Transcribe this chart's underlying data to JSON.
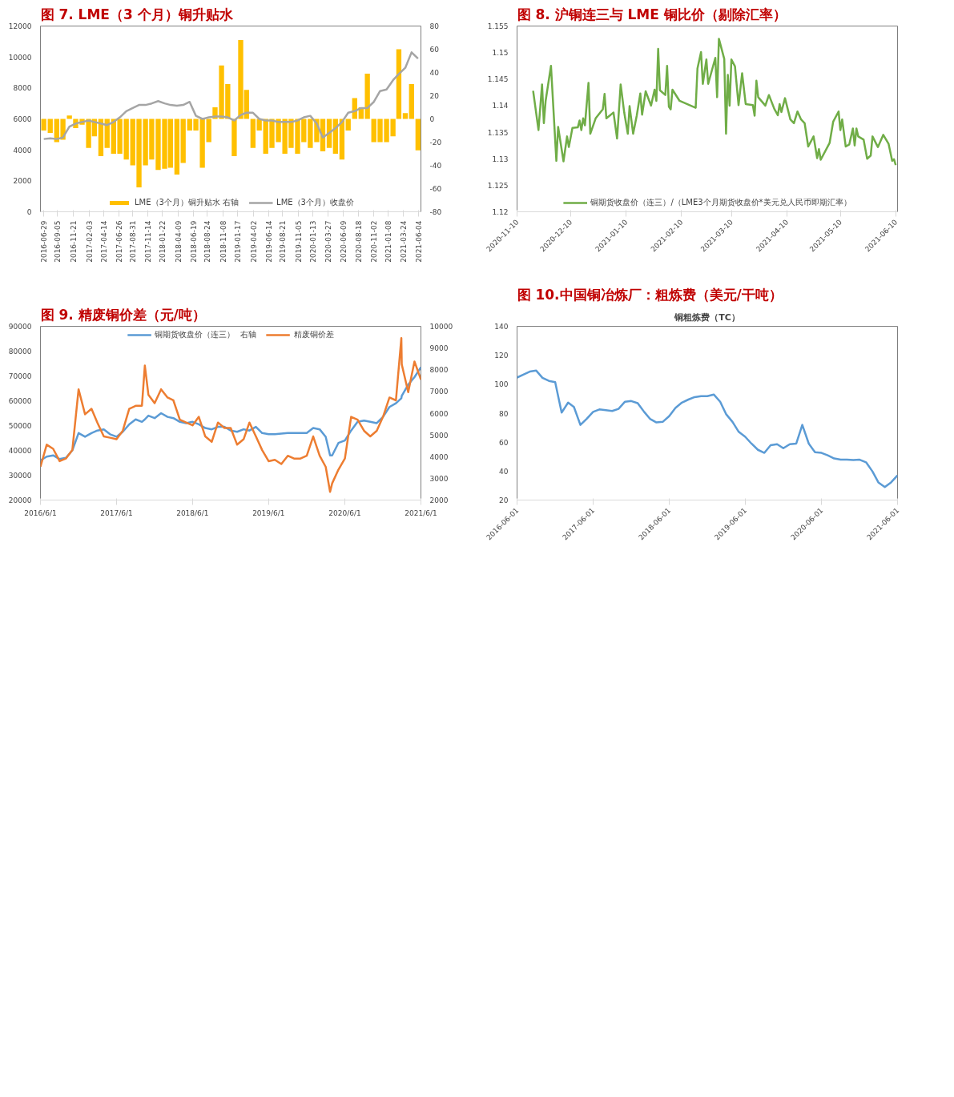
{
  "chart_data": [
    {
      "type": "bar",
      "title": "图 7.  LME（3 个月）铜升贴水",
      "legend": "bottom",
      "grid": false,
      "x": [
        "2016-07-01",
        "2016-08-01",
        "2016-09-01",
        "2016-10-01",
        "2016-11-01",
        "2016-12-01",
        "2017-01-01",
        "2017-02-01",
        "2017-03-01",
        "2017-04-01",
        "2017-05-01",
        "2017-06-01",
        "2017-07-01",
        "2017-08-01",
        "2017-09-01",
        "2017-10-01",
        "2017-11-01",
        "2017-12-01",
        "2018-01-01",
        "2018-02-01",
        "2018-03-01",
        "2018-04-01",
        "2018-05-01",
        "2018-06-01",
        "2018-07-01",
        "2018-08-01",
        "2018-09-01",
        "2018-10-01",
        "2018-11-01",
        "2018-12-01",
        "2019-01-01",
        "2019-02-01",
        "2019-03-01",
        "2019-04-01",
        "2019-05-01",
        "2019-06-01",
        "2019-07-01",
        "2019-08-01",
        "2019-09-01",
        "2019-10-01",
        "2019-11-01",
        "2019-12-01",
        "2020-01-01",
        "2020-02-01",
        "2020-03-01",
        "2020-04-01",
        "2020-05-01",
        "2020-06-01",
        "2020-07-01",
        "2020-08-01",
        "2020-09-01",
        "2020-10-01",
        "2020-11-01",
        "2020-12-01",
        "2021-01-01",
        "2021-02-01",
        "2021-03-01",
        "2021-04-01",
        "2021-05-01",
        "2021-06-01"
      ],
      "xlim": [
        "2016-06-15",
        "2021-06-15"
      ],
      "xticks": [
        "2016-06-29",
        "2016-09-05",
        "2016-11-21",
        "2017-02-03",
        "2017-04-14",
        "2017-06-26",
        "2017-08-31",
        "2017-11-14",
        "2018-01-22",
        "2018-04-09",
        "2018-06-19",
        "2018-08-24",
        "2018-11-08",
        "2019-01-17",
        "2019-04-02",
        "2019-06-14",
        "2019-08-21",
        "2019-11-05",
        "2020-01-13",
        "2020-03-27",
        "2020-06-09",
        "2020-08-18",
        "2020-11-02",
        "2021-01-08",
        "2021-03-24",
        "2021-06-04"
      ],
      "ylim": [
        0,
        12000
      ],
      "yticks": [
        0,
        2000,
        4000,
        6000,
        8000,
        10000,
        12000
      ],
      "y2lim": [
        -80,
        80
      ],
      "y2ticks": [
        -80,
        -60,
        -40,
        -20,
        0,
        20,
        40,
        60,
        80
      ],
      "series": [
        {
          "name": "LME（3个月）铜升贴水 右轴",
          "type": "bar",
          "axis": "y2",
          "color": "#ffc000",
          "values": [
            -10,
            -12,
            -20,
            -18,
            3,
            -8,
            -5,
            -25,
            -15,
            -32,
            -25,
            -30,
            -30,
            -35,
            -40,
            -59,
            -40,
            -35,
            -44,
            -43,
            -42,
            -48,
            -38,
            -10,
            -10,
            -42,
            -20,
            10,
            46,
            30,
            -32,
            68,
            25,
            -25,
            -10,
            -30,
            -25,
            -20,
            -30,
            -25,
            -30,
            -20,
            -25,
            -20,
            -28,
            -25,
            -30,
            -35,
            -10,
            18,
            10,
            39,
            -20,
            -20,
            -20,
            -15,
            60,
            5,
            30,
            -27
          ]
        },
        {
          "name": "LME（3个月）收盘价",
          "type": "line",
          "color": "#a5a5a5",
          "values": [
            4700,
            4750,
            4700,
            4800,
            5500,
            5700,
            5800,
            5900,
            5800,
            5700,
            5600,
            5800,
            6100,
            6500,
            6700,
            6900,
            6900,
            7000,
            7150,
            7000,
            6900,
            6850,
            6900,
            7100,
            6200,
            6000,
            6100,
            6150,
            6150,
            6100,
            5900,
            6250,
            6400,
            6400,
            6000,
            5900,
            5900,
            5800,
            5800,
            5800,
            5900,
            6100,
            6200,
            5700,
            4800,
            5100,
            5400,
            5800,
            6400,
            6500,
            6700,
            6700,
            7100,
            7800,
            7900,
            8500,
            8900,
            9300,
            10300,
            9900
          ]
        }
      ]
    },
    {
      "type": "line",
      "title": "图 8.  沪铜连三与 LME 铜比价（剔除汇率）",
      "legend": "bottom",
      "grid": false,
      "x": [
        "2020-11-19",
        "2020-11-22",
        "2020-11-24",
        "2020-11-25",
        "2020-11-26",
        "2020-11-29",
        "2020-12-02",
        "2020-12-03",
        "2020-12-06",
        "2020-12-08",
        "2020-12-09",
        "2020-12-11",
        "2020-12-14",
        "2020-12-15",
        "2020-12-16",
        "2020-12-17",
        "2020-12-18",
        "2020-12-20",
        "2020-12-21",
        "2020-12-24",
        "2020-12-28",
        "2020-12-29",
        "2020-12-30",
        "2021-01-03",
        "2021-01-05",
        "2021-01-07",
        "2021-01-09",
        "2021-01-11",
        "2021-01-12",
        "2021-01-14",
        "2021-01-16",
        "2021-01-18",
        "2021-01-19",
        "2021-01-21",
        "2021-01-24",
        "2021-01-26",
        "2021-01-27",
        "2021-01-28",
        "2021-01-29",
        "2021-02-01",
        "2021-02-02",
        "2021-02-03",
        "2021-02-04",
        "2021-02-05",
        "2021-02-09",
        "2021-02-18",
        "2021-02-19",
        "2021-02-21",
        "2021-02-22",
        "2021-02-24",
        "2021-02-25",
        "2021-03-01",
        "2021-03-02",
        "2021-03-03",
        "2021-03-06",
        "2021-03-07",
        "2021-03-08",
        "2021-03-09",
        "2021-03-10",
        "2021-03-12",
        "2021-03-14",
        "2021-03-16",
        "2021-03-18",
        "2021-03-22",
        "2021-03-23",
        "2021-03-24",
        "2021-03-25",
        "2021-03-29",
        "2021-03-31",
        "2021-04-03",
        "2021-04-05",
        "2021-04-06",
        "2021-04-07",
        "2021-04-09",
        "2021-04-12",
        "2021-04-14",
        "2021-04-16",
        "2021-04-18",
        "2021-04-20",
        "2021-04-22",
        "2021-04-25",
        "2021-04-27",
        "2021-04-28",
        "2021-04-29",
        "2021-05-04",
        "2021-05-06",
        "2021-05-09",
        "2021-05-10",
        "2021-05-11",
        "2021-05-13",
        "2021-05-15",
        "2021-05-17",
        "2021-05-18",
        "2021-05-19",
        "2021-05-20",
        "2021-05-23",
        "2021-05-25",
        "2021-05-27",
        "2021-05-28",
        "2021-05-31",
        "2021-06-03",
        "2021-06-06",
        "2021-06-08",
        "2021-06-09",
        "2021-06-10"
      ],
      "xlim": [
        "2020-11-10",
        "2021-06-11"
      ],
      "xticks": [
        "2020-11-10",
        "2020-12-10",
        "2021-01-10",
        "2021-02-10",
        "2021-03-10",
        "2021-04-10",
        "2021-05-10",
        "2021-06-10"
      ],
      "ylim": [
        1.12,
        1.155
      ],
      "yticks": [
        1.12,
        1.125,
        1.13,
        1.135,
        1.14,
        1.145,
        1.15,
        1.155
      ],
      "series": [
        {
          "name": "铜期货收盘价（连三）/（LME3个月期货收盘价*美元兑人民币即期汇率）",
          "color": "#70ad47",
          "values": [
            1.1428,
            1.1354,
            1.144,
            1.1367,
            1.1409,
            1.1475,
            1.1296,
            1.136,
            1.1295,
            1.1342,
            1.1322,
            1.1358,
            1.1359,
            1.1372,
            1.1354,
            1.1376,
            1.1363,
            1.1443,
            1.1347,
            1.1376,
            1.1393,
            1.1422,
            1.1376,
            1.1387,
            1.1338,
            1.144,
            1.1387,
            1.1347,
            1.1399,
            1.1347,
            1.1381,
            1.1423,
            1.1383,
            1.1427,
            1.14,
            1.143,
            1.1409,
            1.1507,
            1.1429,
            1.142,
            1.1475,
            1.1398,
            1.1393,
            1.143,
            1.1409,
            1.1396,
            1.147,
            1.1501,
            1.1441,
            1.1487,
            1.1441,
            1.149,
            1.1416,
            1.1526,
            1.1488,
            1.1347,
            1.1458,
            1.14,
            1.1487,
            1.1474,
            1.1401,
            1.1461,
            1.1403,
            1.1401,
            1.1381,
            1.1447,
            1.1416,
            1.14,
            1.142,
            1.1394,
            1.1382,
            1.1403,
            1.1388,
            1.1414,
            1.1374,
            1.1367,
            1.1389,
            1.1374,
            1.1367,
            1.1323,
            1.1342,
            1.1301,
            1.1318,
            1.1298,
            1.133,
            1.137,
            1.1389,
            1.1354,
            1.1374,
            1.1323,
            1.1327,
            1.1357,
            1.1325,
            1.1357,
            1.1342,
            1.1336,
            1.13,
            1.1306,
            1.1342,
            1.1322,
            1.1345,
            1.1328,
            1.1296,
            1.1299,
            1.1288
          ]
        }
      ]
    },
    {
      "type": "line",
      "title": "图 9.  精废铜价差（元/吨）",
      "legend": "top",
      "grid": false,
      "x": [
        "2016-06-01",
        "2016-07-01",
        "2016-08-01",
        "2016-09-01",
        "2016-10-01",
        "2016-11-01",
        "2016-12-01",
        "2017-01-01",
        "2017-02-01",
        "2017-03-01",
        "2017-04-01",
        "2017-05-01",
        "2017-06-01",
        "2017-07-01",
        "2017-08-01",
        "2017-09-01",
        "2017-10-01",
        "2017-10-15",
        "2017-11-01",
        "2017-12-01",
        "2018-01-01",
        "2018-02-01",
        "2018-03-01",
        "2018-04-01",
        "2018-05-01",
        "2018-06-01",
        "2018-07-01",
        "2018-08-01",
        "2018-09-01",
        "2018-10-01",
        "2018-11-01",
        "2018-12-01",
        "2019-01-01",
        "2019-02-01",
        "2019-03-01",
        "2019-04-01",
        "2019-05-01",
        "2019-06-01",
        "2019-07-01",
        "2019-08-01",
        "2019-09-01",
        "2019-10-01",
        "2019-11-01",
        "2019-12-01",
        "2020-01-01",
        "2020-02-01",
        "2020-03-01",
        "2020-03-22",
        "2020-04-01",
        "2020-05-01",
        "2020-06-01",
        "2020-07-01",
        "2020-08-01",
        "2020-09-01",
        "2020-10-01",
        "2020-11-01",
        "2020-12-01",
        "2021-01-01",
        "2021-02-01",
        "2021-02-27",
        "2021-03-01",
        "2021-04-01",
        "2021-05-01",
        "2021-06-01"
      ],
      "xlim": [
        "2016-06-01",
        "2021-06-01"
      ],
      "xticks": [
        {
          "value": "2016-06-01",
          "label": "2016/6/1"
        },
        {
          "value": "2017-06-01",
          "label": "2017/6/1"
        },
        {
          "value": "2018-06-01",
          "label": "2018/6/1"
        },
        {
          "value": "2019-06-01",
          "label": "2019/6/1"
        },
        {
          "value": "2020-06-01",
          "label": "2020/6/1"
        },
        {
          "value": "2021-06-01",
          "label": "2021/6/1"
        }
      ],
      "ylim": [
        20000,
        90000
      ],
      "yticks": [
        20000,
        30000,
        40000,
        50000,
        60000,
        70000,
        80000,
        90000
      ],
      "y2lim": [
        2000,
        10000
      ],
      "y2ticks": [
        2000,
        3000,
        4000,
        5000,
        6000,
        7000,
        8000,
        9000,
        10000
      ],
      "series": [
        {
          "name": "铜期货收盘价（连三）  右轴",
          "color": "#5b9bd5",
          "values": [
            36000,
            37500,
            38000,
            36500,
            37000,
            40000,
            47000,
            45500,
            47000,
            48000,
            48500,
            46500,
            45500,
            47500,
            50500,
            52500,
            51500,
            52500,
            54000,
            53000,
            55000,
            53500,
            53000,
            51500,
            51000,
            51500,
            50500,
            49000,
            48500,
            49500,
            49500,
            48000,
            47500,
            48500,
            48000,
            49500,
            47000,
            46500,
            46500,
            46800,
            47000,
            47000,
            47000,
            47000,
            49000,
            48500,
            45500,
            38000,
            38000,
            43000,
            44000,
            48000,
            51500,
            52000,
            51500,
            51000,
            53500,
            57500,
            59000,
            61000,
            62000,
            66500,
            69500,
            73500
          ]
        },
        {
          "name": "精废铜价差",
          "axis": "y2",
          "color": "#ed7d31",
          "values": [
            3530,
            4550,
            4360,
            3790,
            3910,
            4300,
            7100,
            5950,
            6200,
            5570,
            4930,
            4870,
            4800,
            5190,
            6200,
            6340,
            6340,
            8190,
            6850,
            6460,
            7100,
            6720,
            6590,
            5700,
            5570,
            5440,
            5830,
            4930,
            4680,
            5570,
            5320,
            5320,
            4550,
            4800,
            5570,
            4930,
            4300,
            3790,
            3850,
            3660,
            4040,
            3910,
            3910,
            4040,
            4930,
            4040,
            3530,
            2380,
            2770,
            3400,
            3910,
            5830,
            5700,
            5190,
            4930,
            5190,
            5830,
            6720,
            6590,
            9460,
            8250,
            6970,
            8380,
            7550
          ]
        }
      ]
    },
    {
      "type": "line",
      "title": "图 10.中国铜冶炼厂：粗炼费（美元/干吨）",
      "subtitle": "铜粗炼费（TC）",
      "grid": false,
      "x": [
        "2016-06-01",
        "2016-07-01",
        "2016-08-01",
        "2016-09-01",
        "2016-10-01",
        "2016-11-01",
        "2016-12-01",
        "2017-01-01",
        "2017-02-01",
        "2017-03-01",
        "2017-04-01",
        "2017-05-01",
        "2017-06-01",
        "2017-07-01",
        "2017-08-01",
        "2017-09-01",
        "2017-10-01",
        "2017-11-01",
        "2017-12-01",
        "2018-01-01",
        "2018-02-01",
        "2018-03-01",
        "2018-04-01",
        "2018-05-01",
        "2018-06-01",
        "2018-07-01",
        "2018-08-01",
        "2018-09-01",
        "2018-10-01",
        "2018-11-01",
        "2018-12-01",
        "2019-01-01",
        "2019-02-01",
        "2019-03-01",
        "2019-04-01",
        "2019-05-01",
        "2019-06-01",
        "2019-07-01",
        "2019-08-01",
        "2019-09-01",
        "2019-10-01",
        "2019-11-01",
        "2019-12-01",
        "2020-01-01",
        "2020-02-01",
        "2020-03-01",
        "2020-04-01",
        "2020-05-01",
        "2020-06-01",
        "2020-07-01",
        "2020-08-01",
        "2020-09-01",
        "2020-10-01",
        "2020-11-01",
        "2020-12-01",
        "2021-01-01",
        "2021-02-01",
        "2021-03-01",
        "2021-04-01",
        "2021-05-01",
        "2021-06-01"
      ],
      "xlim": [
        "2016-06-01",
        "2021-06-01"
      ],
      "xticks": [
        "2016-06-01",
        "2017-06-01",
        "2018-06-01",
        "2019-06-01",
        "2020-06-01",
        "2021-06-01"
      ],
      "ylim": [
        20,
        140
      ],
      "yticks": [
        20,
        40,
        60,
        80,
        100,
        120,
        140
      ],
      "series": [
        {
          "color": "#5b9bd5",
          "values": [
            104.6,
            106.6,
            108.7,
            109.4,
            104.4,
            102.3,
            101.4,
            80.4,
            87.3,
            84.3,
            71.9,
            76.1,
            80.9,
            82.6,
            82.1,
            81.5,
            83.0,
            87.9,
            88.4,
            86.9,
            80.9,
            76.1,
            73.6,
            74.0,
            77.9,
            83.6,
            87.3,
            89.4,
            91.1,
            91.8,
            91.8,
            92.9,
            87.9,
            79.4,
            74.0,
            67.1,
            63.7,
            59.0,
            54.7,
            52.6,
            57.9,
            58.6,
            55.8,
            58.6,
            59.0,
            71.9,
            59.0,
            53.0,
            52.6,
            50.9,
            48.7,
            47.9,
            47.9,
            47.6,
            47.9,
            46.1,
            39.7,
            32.2,
            29.0,
            32.2,
            37.1
          ]
        }
      ]
    }
  ]
}
